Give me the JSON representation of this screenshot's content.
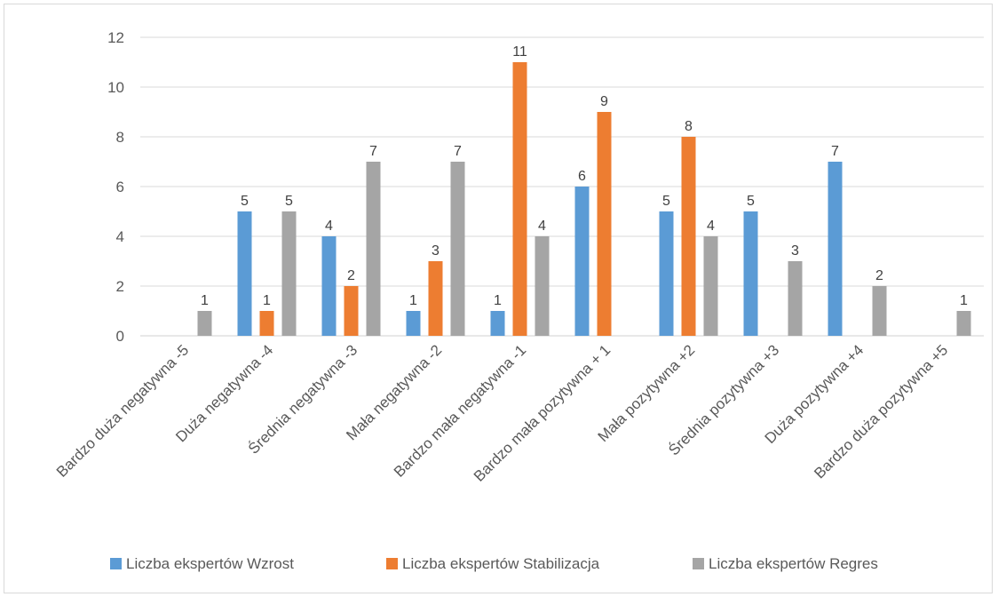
{
  "chart_data": {
    "type": "bar",
    "title": "",
    "xlabel": "",
    "ylabel": "",
    "ylim": [
      0,
      12
    ],
    "yticks": [
      0,
      2,
      4,
      6,
      8,
      10,
      12
    ],
    "grid": true,
    "legend_position": "bottom",
    "categories": [
      "Bardzo duża negatywna -5",
      "Duża negatywna -4",
      "Średnia negatywna -3",
      "Mała negatywna -2",
      "Bardzo mała negatywna -1",
      "Bardzo mała pozytywna + 1",
      "Mała pozytywna +2",
      "Średnia pozytywna +3",
      "Duża pozytywna +4",
      "Bardzo duża pozytywna +5"
    ],
    "series": [
      {
        "name": "Liczba ekspertów Wzrost",
        "color": "#5b9bd5",
        "values": [
          null,
          5,
          4,
          1,
          1,
          6,
          5,
          5,
          7,
          null
        ]
      },
      {
        "name": "Liczba ekspertów Stabilizacja",
        "color": "#ed7d31",
        "values": [
          null,
          1,
          2,
          3,
          11,
          9,
          8,
          null,
          null,
          null
        ]
      },
      {
        "name": "Liczba ekspertów Regres",
        "color": "#a5a5a5",
        "values": [
          1,
          5,
          7,
          7,
          4,
          null,
          4,
          3,
          2,
          1
        ]
      }
    ]
  }
}
